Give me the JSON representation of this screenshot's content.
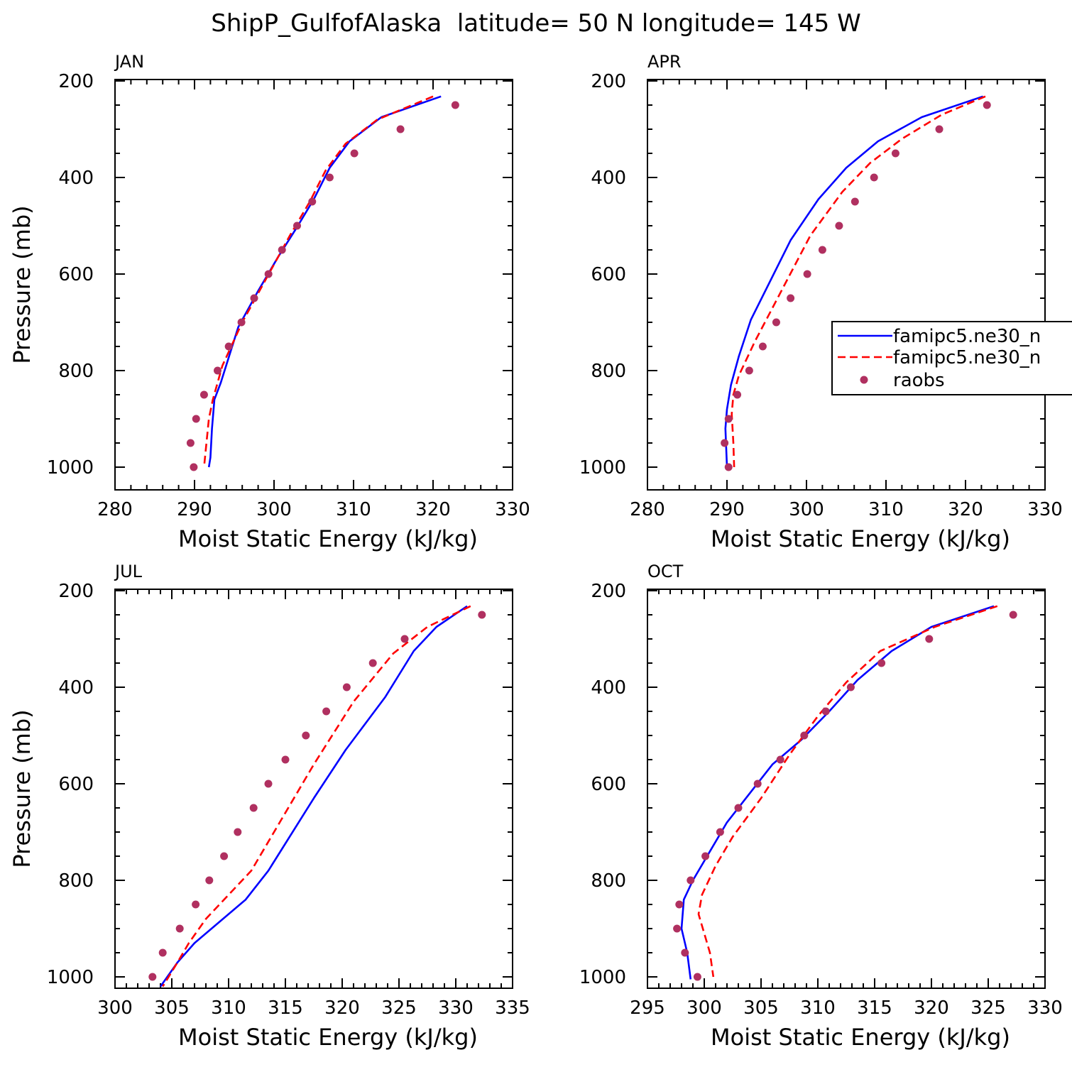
{
  "figure": {
    "title": "ShipP_GulfofAlaska  latitude= 50 N longitude= 145 W"
  },
  "chart_data": [
    {
      "type": "line",
      "panel_label": "JAN",
      "xlabel": "Moist Static Energy (kJ/kg)",
      "ylabel": "Pressure (mb)",
      "xlim": [
        280,
        330
      ],
      "ylim": [
        200,
        1000
      ],
      "y_inverted": true,
      "xticks": [
        280,
        290,
        300,
        310,
        320,
        330
      ],
      "yticks": [
        200,
        400,
        600,
        800,
        1000
      ],
      "legend": false,
      "series": [
        {
          "name": "famipc5.ne30_n",
          "style": "solid",
          "color": "#0000ff",
          "x": [
            321.0,
            313.5,
            309.5,
            307.0,
            305.0,
            303.0,
            300.5,
            298.0,
            295.5,
            293.3,
            292.5,
            292.2,
            292.0,
            291.8
          ],
          "y": [
            232,
            275,
            325,
            380,
            445,
            500,
            565,
            635,
            710,
            825,
            860,
            920,
            980,
            1000
          ]
        },
        {
          "name": "famipc5.ne30_n",
          "style": "dashed",
          "color": "#ff0000",
          "x": [
            320.0,
            313.0,
            309.0,
            306.5,
            304.5,
            302.0,
            299.0,
            296.0,
            293.5,
            292.3,
            291.8,
            291.5,
            291.2
          ],
          "y": [
            232,
            280,
            330,
            385,
            450,
            520,
            610,
            700,
            790,
            860,
            900,
            950,
            1000
          ]
        },
        {
          "name": "raobs",
          "style": "points",
          "color": "#b03060",
          "x": [
            322.8,
            315.9,
            310.1,
            307.0,
            304.8,
            302.9,
            301.0,
            299.3,
            297.5,
            295.9,
            294.3,
            292.9,
            291.2,
            290.2,
            289.5,
            289.9
          ],
          "y": [
            250,
            300,
            350,
            400,
            450,
            500,
            550,
            600,
            650,
            700,
            750,
            800,
            850,
            900,
            950,
            1000
          ]
        }
      ]
    },
    {
      "type": "line",
      "panel_label": "APR",
      "xlabel": "Moist Static Energy (kJ/kg)",
      "ylabel": "",
      "xlim": [
        280,
        330
      ],
      "ylim": [
        200,
        1000
      ],
      "y_inverted": true,
      "xticks": [
        280,
        290,
        300,
        310,
        320,
        330
      ],
      "yticks": [
        200,
        400,
        600,
        800,
        1000
      ],
      "legend": true,
      "legend_position": "right",
      "legend_entries": [
        "famipc5.ne30_n",
        "famipc5.ne30_n",
        "raobs"
      ],
      "series": [
        {
          "name": "famipc5.ne30_n",
          "style": "solid",
          "color": "#0000ff",
          "x": [
            322.2,
            314.5,
            309.0,
            305.0,
            301.5,
            298.0,
            293.0,
            291.5,
            290.5,
            290.0,
            289.8,
            289.9,
            290.0
          ],
          "y": [
            232,
            275,
            325,
            380,
            445,
            530,
            695,
            770,
            830,
            880,
            920,
            960,
            1000
          ]
        },
        {
          "name": "famipc5.ne30_n",
          "style": "dashed",
          "color": "#ff0000",
          "x": [
            322.5,
            317.0,
            312.0,
            308.0,
            304.5,
            300.5,
            297.0,
            293.5,
            291.5,
            290.8,
            290.6,
            290.8,
            290.9
          ],
          "y": [
            232,
            270,
            320,
            370,
            430,
            520,
            630,
            740,
            810,
            850,
            890,
            950,
            1000
          ]
        },
        {
          "name": "raobs",
          "style": "points",
          "color": "#b03060",
          "x": [
            322.7,
            316.7,
            311.2,
            308.5,
            306.1,
            304.1,
            302.0,
            300.1,
            298.0,
            296.2,
            294.5,
            292.8,
            291.3,
            290.2,
            289.7,
            290.2
          ],
          "y": [
            250,
            300,
            350,
            400,
            450,
            500,
            550,
            600,
            650,
            700,
            750,
            800,
            850,
            900,
            950,
            1000
          ]
        }
      ]
    },
    {
      "type": "line",
      "panel_label": "JUL",
      "xlabel": "Moist Static Energy (kJ/kg)",
      "ylabel": "Pressure (mb)",
      "xlim": [
        300,
        335
      ],
      "ylim": [
        200,
        1000
      ],
      "y_inverted": true,
      "xticks": [
        300,
        305,
        310,
        315,
        320,
        325,
        330,
        335
      ],
      "yticks": [
        200,
        400,
        600,
        800,
        1000
      ],
      "legend": false,
      "series": [
        {
          "name": "famipc5.ne30_n",
          "style": "solid",
          "color": "#0000ff",
          "x": [
            331.0,
            328.3,
            326.3,
            323.8,
            320.3,
            317.5,
            313.5,
            311.5,
            307.0,
            305.5,
            304.0
          ],
          "y": [
            232,
            275,
            325,
            420,
            530,
            630,
            780,
            840,
            930,
            970,
            1020
          ]
        },
        {
          "name": "famipc5.ne30_n",
          "style": "dashed",
          "color": "#ff0000",
          "x": [
            331.3,
            327.5,
            324.5,
            321.0,
            317.5,
            314.5,
            312.0,
            310.0,
            308.0,
            306.5,
            305.5,
            304.2
          ],
          "y": [
            232,
            275,
            330,
            430,
            560,
            680,
            780,
            830,
            880,
            930,
            970,
            1020
          ]
        },
        {
          "name": "raobs",
          "style": "points",
          "color": "#b03060",
          "x": [
            332.3,
            325.5,
            322.7,
            320.4,
            318.6,
            316.8,
            315.0,
            313.5,
            312.2,
            310.8,
            309.6,
            308.3,
            307.1,
            305.7,
            304.2,
            303.3
          ],
          "y": [
            250,
            300,
            350,
            400,
            450,
            500,
            550,
            600,
            650,
            700,
            750,
            800,
            850,
            900,
            950,
            1000
          ]
        }
      ]
    },
    {
      "type": "line",
      "panel_label": "OCT",
      "xlabel": "Moist Static Energy (kJ/kg)",
      "ylabel": "",
      "xlim": [
        295,
        330
      ],
      "ylim": [
        200,
        1000
      ],
      "y_inverted": true,
      "xticks": [
        295,
        300,
        305,
        310,
        315,
        320,
        325,
        330
      ],
      "yticks": [
        200,
        400,
        600,
        800,
        1000
      ],
      "legend": false,
      "series": [
        {
          "name": "famipc5.ne30_n",
          "style": "solid",
          "color": "#0000ff",
          "x": [
            325.5,
            320.0,
            316.5,
            313.5,
            311.0,
            308.5,
            306.0,
            304.0,
            302.0,
            300.5,
            299.0,
            298.2,
            298.0,
            298.5,
            298.8
          ],
          "y": [
            232,
            275,
            325,
            385,
            450,
            510,
            560,
            620,
            680,
            740,
            800,
            840,
            900,
            950,
            1005
          ]
        },
        {
          "name": "famipc5.ne30_n",
          "style": "dashed",
          "color": "#ff0000",
          "x": [
            325.8,
            320.3,
            315.5,
            312.5,
            310.0,
            307.5,
            305.0,
            302.5,
            301.0,
            299.8,
            299.5,
            300.5,
            300.8
          ],
          "y": [
            232,
            275,
            325,
            390,
            460,
            540,
            630,
            710,
            770,
            830,
            870,
            950,
            1000
          ]
        },
        {
          "name": "raobs",
          "style": "points",
          "color": "#b03060",
          "x": [
            327.2,
            319.8,
            315.6,
            312.9,
            310.7,
            308.8,
            306.7,
            304.7,
            303.0,
            301.4,
            300.1,
            298.8,
            297.8,
            297.6,
            298.3,
            299.4
          ],
          "y": [
            250,
            300,
            350,
            400,
            450,
            500,
            550,
            600,
            650,
            700,
            750,
            800,
            850,
            900,
            950,
            1000
          ]
        }
      ]
    }
  ]
}
